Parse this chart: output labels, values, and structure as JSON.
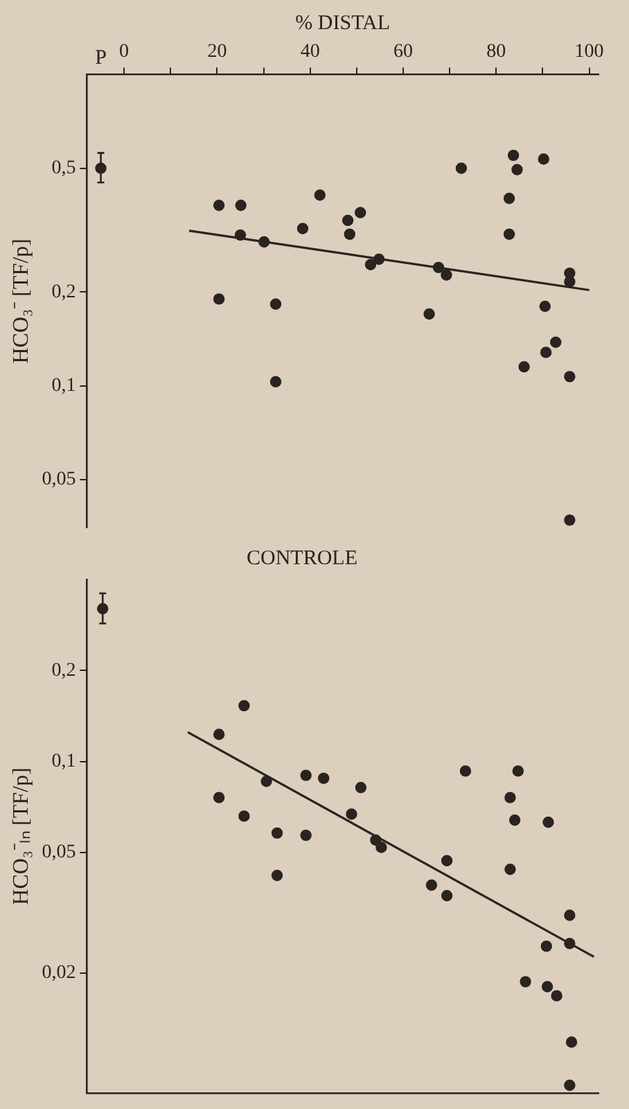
{
  "chart_data": [
    {
      "type": "scatter",
      "xlabel": "% DISTAL",
      "ylabel": "HCO₃⁻ [TF/p]",
      "log": "y",
      "grid": false,
      "legend": false,
      "marker": "circle",
      "xlim": [
        -8,
        102
      ],
      "xticks": [
        0,
        {
          "value": 10,
          "label": null
        },
        20,
        {
          "value": 30,
          "label": null
        },
        40,
        {
          "value": 50,
          "label": null
        },
        60,
        {
          "value": 70,
          "label": null
        },
        80,
        {
          "value": 90,
          "label": null
        },
        100
      ],
      "ylim": [
        0.035,
        1
      ],
      "yticks": [
        {
          "value": 0.05,
          "label": "0,05"
        },
        {
          "value": 0.1,
          "label": "0,1"
        },
        {
          "value": 0.2,
          "label": "0,2"
        },
        {
          "value": 0.5,
          "label": "0,5"
        }
      ],
      "series": [
        {
          "color": "#2a2420",
          "x": [
            20.4,
            25.1,
            25,
            30.1,
            20.4,
            32.6,
            32.6,
            38.4,
            42.1,
            48.1,
            48.5,
            50.8,
            53,
            54.8,
            65.6,
            67.6,
            69.3,
            72.5,
            82.8,
            82.8,
            83.7,
            84.5,
            86,
            90.2,
            90.5,
            90.7,
            92.8,
            95.8,
            95.8,
            95.8,
            95.8
          ],
          "values": [
            0.38,
            0.38,
            0.305,
            0.29,
            0.19,
            0.183,
            0.103,
            0.32,
            0.41,
            0.34,
            0.307,
            0.36,
            0.245,
            0.255,
            0.17,
            0.24,
            0.227,
            0.5,
            0.4,
            0.307,
            0.55,
            0.495,
            0.115,
            0.535,
            0.18,
            0.128,
            0.138,
            0.23,
            0.216,
            0.107,
            0.037
          ]
        },
        {
          "type": "line",
          "color": "#2a2420",
          "marker": "none",
          "x": [
            14,
            100
          ],
          "values": [
            0.315,
            0.203
          ]
        },
        {
          "name": "P",
          "color": "#2a2420",
          "x": [
            -5
          ],
          "values": [
            0.5
          ],
          "errors": [
            [
              0.45,
              0.56
            ]
          ]
        }
      ]
    },
    {
      "type": "scatter",
      "title": "CONTROLE",
      "ylabel": "HCO₃⁻ₗₙ [TF/p]",
      "log": "y",
      "grid": false,
      "legend": false,
      "marker": "circle",
      "tick_labels": "y",
      "xlim": [
        -8,
        102
      ],
      "ylim": [
        0.008,
        0.4
      ],
      "yticks": [
        {
          "value": 0.02,
          "label": "0,02"
        },
        {
          "value": 0.05,
          "label": "0,05"
        },
        {
          "value": 0.1,
          "label": "0,1"
        },
        {
          "value": 0.2,
          "label": "0,2"
        }
      ],
      "series": [
        {
          "color": "#2a2420",
          "x": [
            20.4,
            25.8,
            20.4,
            25.8,
            30.6,
            32.9,
            32.9,
            39.1,
            39.1,
            42.9,
            50.9,
            48.9,
            54.1,
            55.3,
            66.1,
            69.4,
            69.4,
            73.4,
            83,
            83,
            84.7,
            84,
            91.2,
            90.8,
            86.3,
            91,
            93,
            95.8,
            95.8,
            96.2,
            95.8
          ],
          "values": [
            0.123,
            0.153,
            0.076,
            0.066,
            0.086,
            0.058,
            0.042,
            0.09,
            0.057,
            0.088,
            0.082,
            0.067,
            0.055,
            0.052,
            0.039,
            0.047,
            0.036,
            0.093,
            0.076,
            0.044,
            0.093,
            0.064,
            0.063,
            0.0245,
            0.0187,
            0.018,
            0.0168,
            0.031,
            0.025,
            0.0118,
            0.0085
          ]
        },
        {
          "type": "line",
          "color": "#2a2420",
          "marker": "none",
          "x": [
            13.7,
            101
          ],
          "values": [
            0.125,
            0.0226
          ]
        },
        {
          "color": "#2a2420",
          "x": [
            -4.6
          ],
          "values": [
            0.32
          ],
          "errors": [
            [
              0.286,
              0.36
            ]
          ]
        }
      ]
    }
  ]
}
